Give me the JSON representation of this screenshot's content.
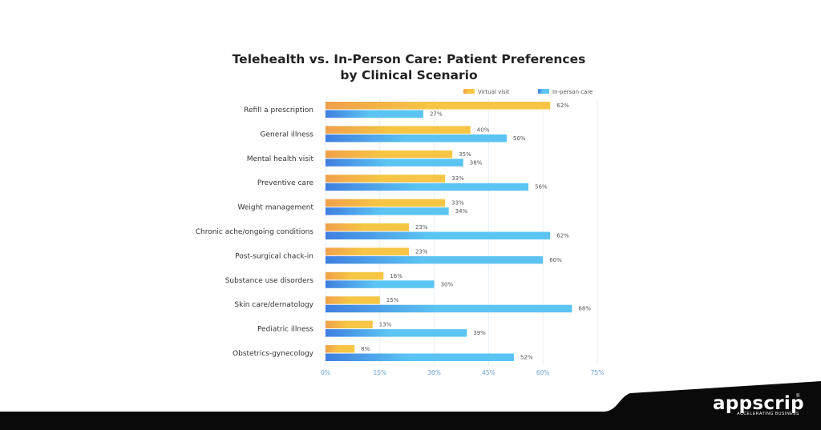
{
  "chart_data": {
    "type": "bar",
    "orientation": "horizontal",
    "title": "Telehealth vs. In-Person Care: Patient Preferences by Clinical Scenario",
    "title_lines": [
      "Telehealth vs. In-Person Care: Patient Preferences",
      "by Clinical Scenario"
    ],
    "categories": [
      "Refill a prescription",
      "General illness",
      "Mental health visit",
      "Preventive care",
      "Weight management",
      "Chronic ache/ongoing conditions",
      "Post-surgical chack-in",
      "Substance use disorders",
      "Skin care/dernatology",
      "Pediatric illness",
      "Obstetrics-gynecology"
    ],
    "series": [
      {
        "name": "Virtual visit",
        "color": "#f6c544",
        "gradient_start": "#f0a04b",
        "values": [
          62,
          40,
          35,
          33,
          33,
          23,
          23,
          16,
          15,
          13,
          8
        ]
      },
      {
        "name": "In-person care",
        "color": "#5bc4f2",
        "gradient_start": "#3f7fe0",
        "values": [
          27,
          50,
          38,
          56,
          34,
          62,
          60,
          30,
          68,
          39,
          52
        ]
      }
    ],
    "value_suffix": "%",
    "xlim": [
      0,
      75
    ],
    "xticks": [
      "0%",
      "15%",
      "30%",
      "45%",
      "60%",
      "75%"
    ],
    "xlabel": "",
    "ylabel": "",
    "grid": true,
    "legend_position": "top-right"
  },
  "brand": {
    "name": "appscrip",
    "tagline": "ACCELERATING BUSINESS",
    "mark": "®"
  }
}
